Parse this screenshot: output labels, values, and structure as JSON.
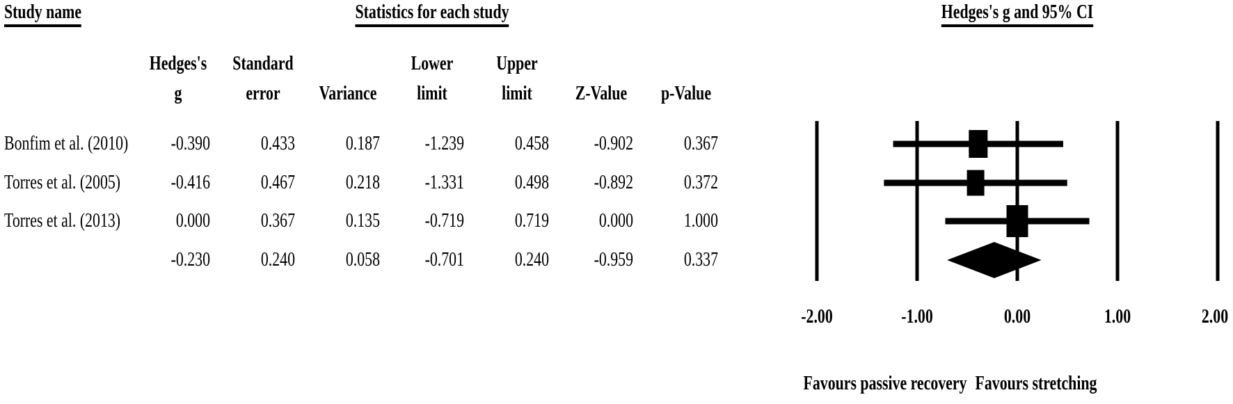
{
  "titles": {
    "study_name": "Study name",
    "statistics": "Statistics for each study",
    "ci": "Hedges's g and 95% CI"
  },
  "colors": {
    "ink": "#000000",
    "background": "#ffffff"
  },
  "table": {
    "column_headers": [
      {
        "line1": "Hedges's",
        "line2": "g"
      },
      {
        "line1": "Standard",
        "line2": "error"
      },
      {
        "line1": "",
        "line2": "Variance"
      },
      {
        "line1": "Lower",
        "line2": "limit"
      },
      {
        "line1": "Upper",
        "line2": "limit"
      },
      {
        "line1": "",
        "line2": "Z-Value"
      },
      {
        "line1": "",
        "line2": "p-Value"
      }
    ],
    "rows": [
      {
        "study": "Bonfim et al. (2010)",
        "hedges_g": "-0.390",
        "standard_error": "0.433",
        "variance": "0.187",
        "lower_limit": "-1.239",
        "upper_limit": "0.458",
        "z_value": "-0.902",
        "p_value": "0.367"
      },
      {
        "study": "Torres et al. (2005)",
        "hedges_g": "-0.416",
        "standard_error": "0.467",
        "variance": "0.218",
        "lower_limit": "-1.331",
        "upper_limit": "0.498",
        "z_value": "-0.892",
        "p_value": "0.372"
      },
      {
        "study": "Torres et al. (2013)",
        "hedges_g": "0.000",
        "standard_error": "0.367",
        "variance": "0.135",
        "lower_limit": "-0.719",
        "upper_limit": "0.719",
        "z_value": "0.000",
        "p_value": "1.000"
      },
      {
        "study": "",
        "hedges_g": "-0.230",
        "standard_error": "0.240",
        "variance": "0.058",
        "lower_limit": "-0.701",
        "upper_limit": "0.240",
        "z_value": "-0.959",
        "p_value": "0.337"
      }
    ]
  },
  "chart_data": {
    "type": "forest",
    "title": "Hedges's g and 95% CI",
    "xlim": [
      -2.0,
      2.0
    ],
    "tick_values": [
      -2,
      -1,
      0,
      1,
      2
    ],
    "tick_labels": [
      "-2.00",
      "-1.00",
      "0.00",
      "1.00",
      "2.00"
    ],
    "grid": true,
    "studies": [
      {
        "name": "Bonfim et al. (2010)",
        "g": -0.39,
        "lower": -1.239,
        "upper": 0.458
      },
      {
        "name": "Torres et al. (2005)",
        "g": -0.416,
        "lower": -1.331,
        "upper": 0.498
      },
      {
        "name": "Torres et al. (2013)",
        "g": 0.0,
        "lower": -0.719,
        "upper": 0.719
      }
    ],
    "summary": {
      "g": -0.23,
      "lower": -0.701,
      "upper": 0.24
    },
    "favours_left": "Favours passive recovery",
    "favours_right": "Favours stretching"
  }
}
